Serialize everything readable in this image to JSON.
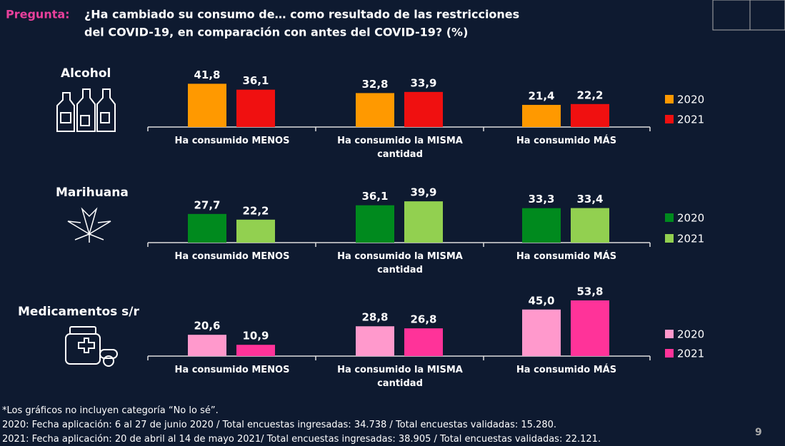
{
  "title_prefix": "Pregunta:",
  "title_lines": [
    "¿Ha cambiado su consumo de… como resultado de las restricciones",
    "del COVID-19, en comparación con antes del COVID-19? (%)"
  ],
  "chart_data": [
    {
      "type": "bar",
      "title": "Alcohol",
      "categories": [
        "Ha consumido MENOS",
        "Ha consumido la MISMA cantidad",
        "Ha consumido MÁS"
      ],
      "series": [
        {
          "name": "2020",
          "color": "#ff9900",
          "values": [
            41.8,
            32.8,
            21.4
          ],
          "value_labels": [
            "41,8",
            "32,8",
            "21,4"
          ]
        },
        {
          "name": "2021",
          "color": "#f01010",
          "values": [
            36.1,
            33.9,
            22.2
          ],
          "value_labels": [
            "36,1",
            "33,9",
            "22,2"
          ]
        }
      ]
    },
    {
      "type": "bar",
      "title": "Marihuana",
      "categories": [
        "Ha consumido MENOS",
        "Ha consumido la MISMA cantidad",
        "Ha consumido MÁS"
      ],
      "series": [
        {
          "name": "2020",
          "color": "#008a1e",
          "values": [
            27.7,
            36.1,
            33.3
          ],
          "value_labels": [
            "27,7",
            "36,1",
            "33,3"
          ]
        },
        {
          "name": "2021",
          "color": "#92d050",
          "values": [
            22.2,
            39.9,
            33.4
          ],
          "value_labels": [
            "22,2",
            "39,9",
            "33,4"
          ]
        }
      ]
    },
    {
      "type": "bar",
      "title": "Medicamentos s/r",
      "categories": [
        "Ha consumido MENOS",
        "Ha consumido la MISMA cantidad",
        "Ha consumido MÁS"
      ],
      "series": [
        {
          "name": "2020",
          "color": "#ff99cc",
          "values": [
            20.6,
            28.8,
            45.0
          ],
          "value_labels": [
            "20,6",
            "28,8",
            "45,0"
          ]
        },
        {
          "name": "2021",
          "color": "#ff3399",
          "values": [
            10.9,
            26.8,
            53.8
          ],
          "value_labels": [
            "10,9",
            "26,8",
            "53,8"
          ]
        }
      ]
    }
  ],
  "footnotes": [
    "*Los gráficos no incluyen categoría “No lo sé”.",
    "2020: Fecha aplicación: 6 al 27 de junio 2020 / Total encuestas ingresadas: 34.738 / Total encuestas validadas: 15.280.",
    "2021: Fecha aplicación: 20 de abril al 14 de mayo 2021/ Total encuestas ingresadas: 38.905 / Total encuestas validadas: 22.121."
  ],
  "page_number": "9"
}
